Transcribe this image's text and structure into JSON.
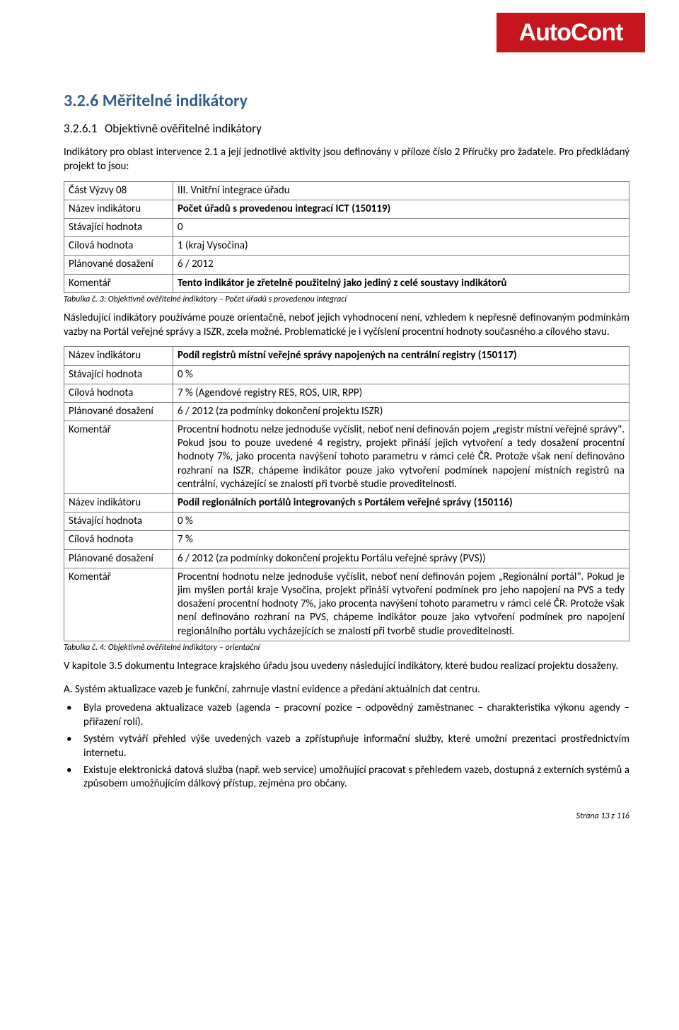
{
  "logo": {
    "text": "AutoCont",
    "bg": "#c4161c",
    "fg": "#ffffff"
  },
  "headings": {
    "h326": "3.2.6  Měřitelné indikátory",
    "h3261_num": "3.2.6.1",
    "h3261_title": "Objektivně ověřitelné indikátory"
  },
  "paragraphs": {
    "intro1": "Indikátory pro oblast intervence 2.1 a její jednotlivé aktivity jsou definovány v příloze číslo 2 Příručky pro žadatele. Pro předkládaný projekt to jsou:",
    "after_t1": "Následující indikátory používáme pouze orientačně, neboť jejich vyhodnocení není, vzhledem k nepřesně definovaným podmínkám vazby na Portál veřejné správy a ISZR, zcela možné. Problematické je i vyčíslení procentní hodnoty současného a cílového stavu.",
    "after_t2": "V kapitole 3.5 dokumentu Integrace krajského úřadu jsou uvedeny následující indikátory, které budou realizací projektu dosaženy.",
    "subA": "A. Systém aktualizace vazeb je funkční, zahrnuje vlastní evidence a předání aktuálních dat centru."
  },
  "table1": {
    "rows": [
      {
        "label": "Část Výzvy 08",
        "value": "III. Vnitřní integrace úřadu",
        "bold": false
      },
      {
        "label": "Název indikátoru",
        "value": "Počet úřadů s provedenou integrací ICT (150119)",
        "bold": true
      },
      {
        "label": "Stávající hodnota",
        "value": "0",
        "bold": false
      },
      {
        "label": "Cílová hodnota",
        "value": "1 (kraj Vysočina)",
        "bold": false
      },
      {
        "label": "Plánované dosažení",
        "value": "6 / 2012",
        "bold": false
      },
      {
        "label": "Komentář",
        "value": "Tento indikátor je zřetelně použitelný jako jediný z celé soustavy indikátorů",
        "bold": true
      }
    ],
    "caption": "Tabulka č. 3:   Objektivně ověřitelné indikátory – Počet úřadů s provedenou integrací"
  },
  "table2": {
    "rows": [
      {
        "label": "Název indikátoru",
        "value": "Podíl registrů místní veřejné správy napojených na centrální registry (150117)",
        "bold": true
      },
      {
        "label": "Stávající hodnota",
        "value": "0 %",
        "bold": false
      },
      {
        "label": "Cílová hodnota",
        "value": "7 % (Agendové registry RES, ROS, UIR, RPP)",
        "bold": false
      },
      {
        "label": "Plánované dosažení",
        "value": "6 / 2012 (za podmínky dokončení projektu ISZR)",
        "bold": false
      },
      {
        "label": "Komentář",
        "value": "Procentní hodnotu nelze jednoduše vyčíslit, neboť není definován pojem „registr místní veřejné správy\". Pokud jsou to pouze uvedené 4 registry, projekt přináší jejich vytvoření a tedy dosažení procentní hodnoty 7%, jako procenta navýšení tohoto parametru v rámci celé ČR. Protože však není definováno rozhraní na ISZR, chápeme indikátor pouze jako vytvoření podmínek napojení místních registrů na centrální, vycházející se znalostí při tvorbě studie proveditelnosti.",
        "bold": false
      },
      {
        "label": "Název indikátoru",
        "value": "Podíl regionálních portálů integrovaných s Portálem veřejné správy (150116)",
        "bold": true
      },
      {
        "label": "Stávající hodnota",
        "value": "0 %",
        "bold": false
      },
      {
        "label": "Cílová hodnota",
        "value": "7 %",
        "bold": false
      },
      {
        "label": "Plánované dosažení",
        "value": "6 / 2012 (za podmínky dokončení projektu Portálu veřejné správy (PVS))",
        "bold": false
      },
      {
        "label": "Komentář",
        "value": "Procentní hodnotu nelze jednoduše vyčíslit, neboť není definován pojem „Regionální portál\". Pokud je jim myšlen portál kraje Vysočina, projekt přináší vytvoření podmínek pro jeho napojení na PVS a tedy dosažení procentní hodnoty 7%, jako procenta navýšení tohoto parametru v rámci celé ČR. Protože však není definováno rozhraní na PVS, chápeme indikátor pouze jako vytvoření podmínek pro napojení regionálního portálu vycházejících se znalostí při tvorbě studie proveditelnosti.",
        "bold": false
      }
    ],
    "caption": "Tabulka č. 4:   Objektivně ověřitelné indikátory – orientační"
  },
  "bullets": [
    "Byla provedena aktualizace vazeb (agenda – pracovní pozice – odpovědný zaměstnanec – charakteristika výkonu agendy – přiřazení rolí).",
    "Systém vytváří přehled výše uvedených vazeb a zpřístupňuje informační služby, které umožní prezentaci prostřednictvím internetu.",
    "Existuje elektronická datová služba (např. web service) umožňující pracovat s přehledem vazeb, dostupná z externích systémů a způsobem umožňujícím dálkový přístup, zejména pro občany."
  ],
  "footer": "Strana 13 z 116"
}
